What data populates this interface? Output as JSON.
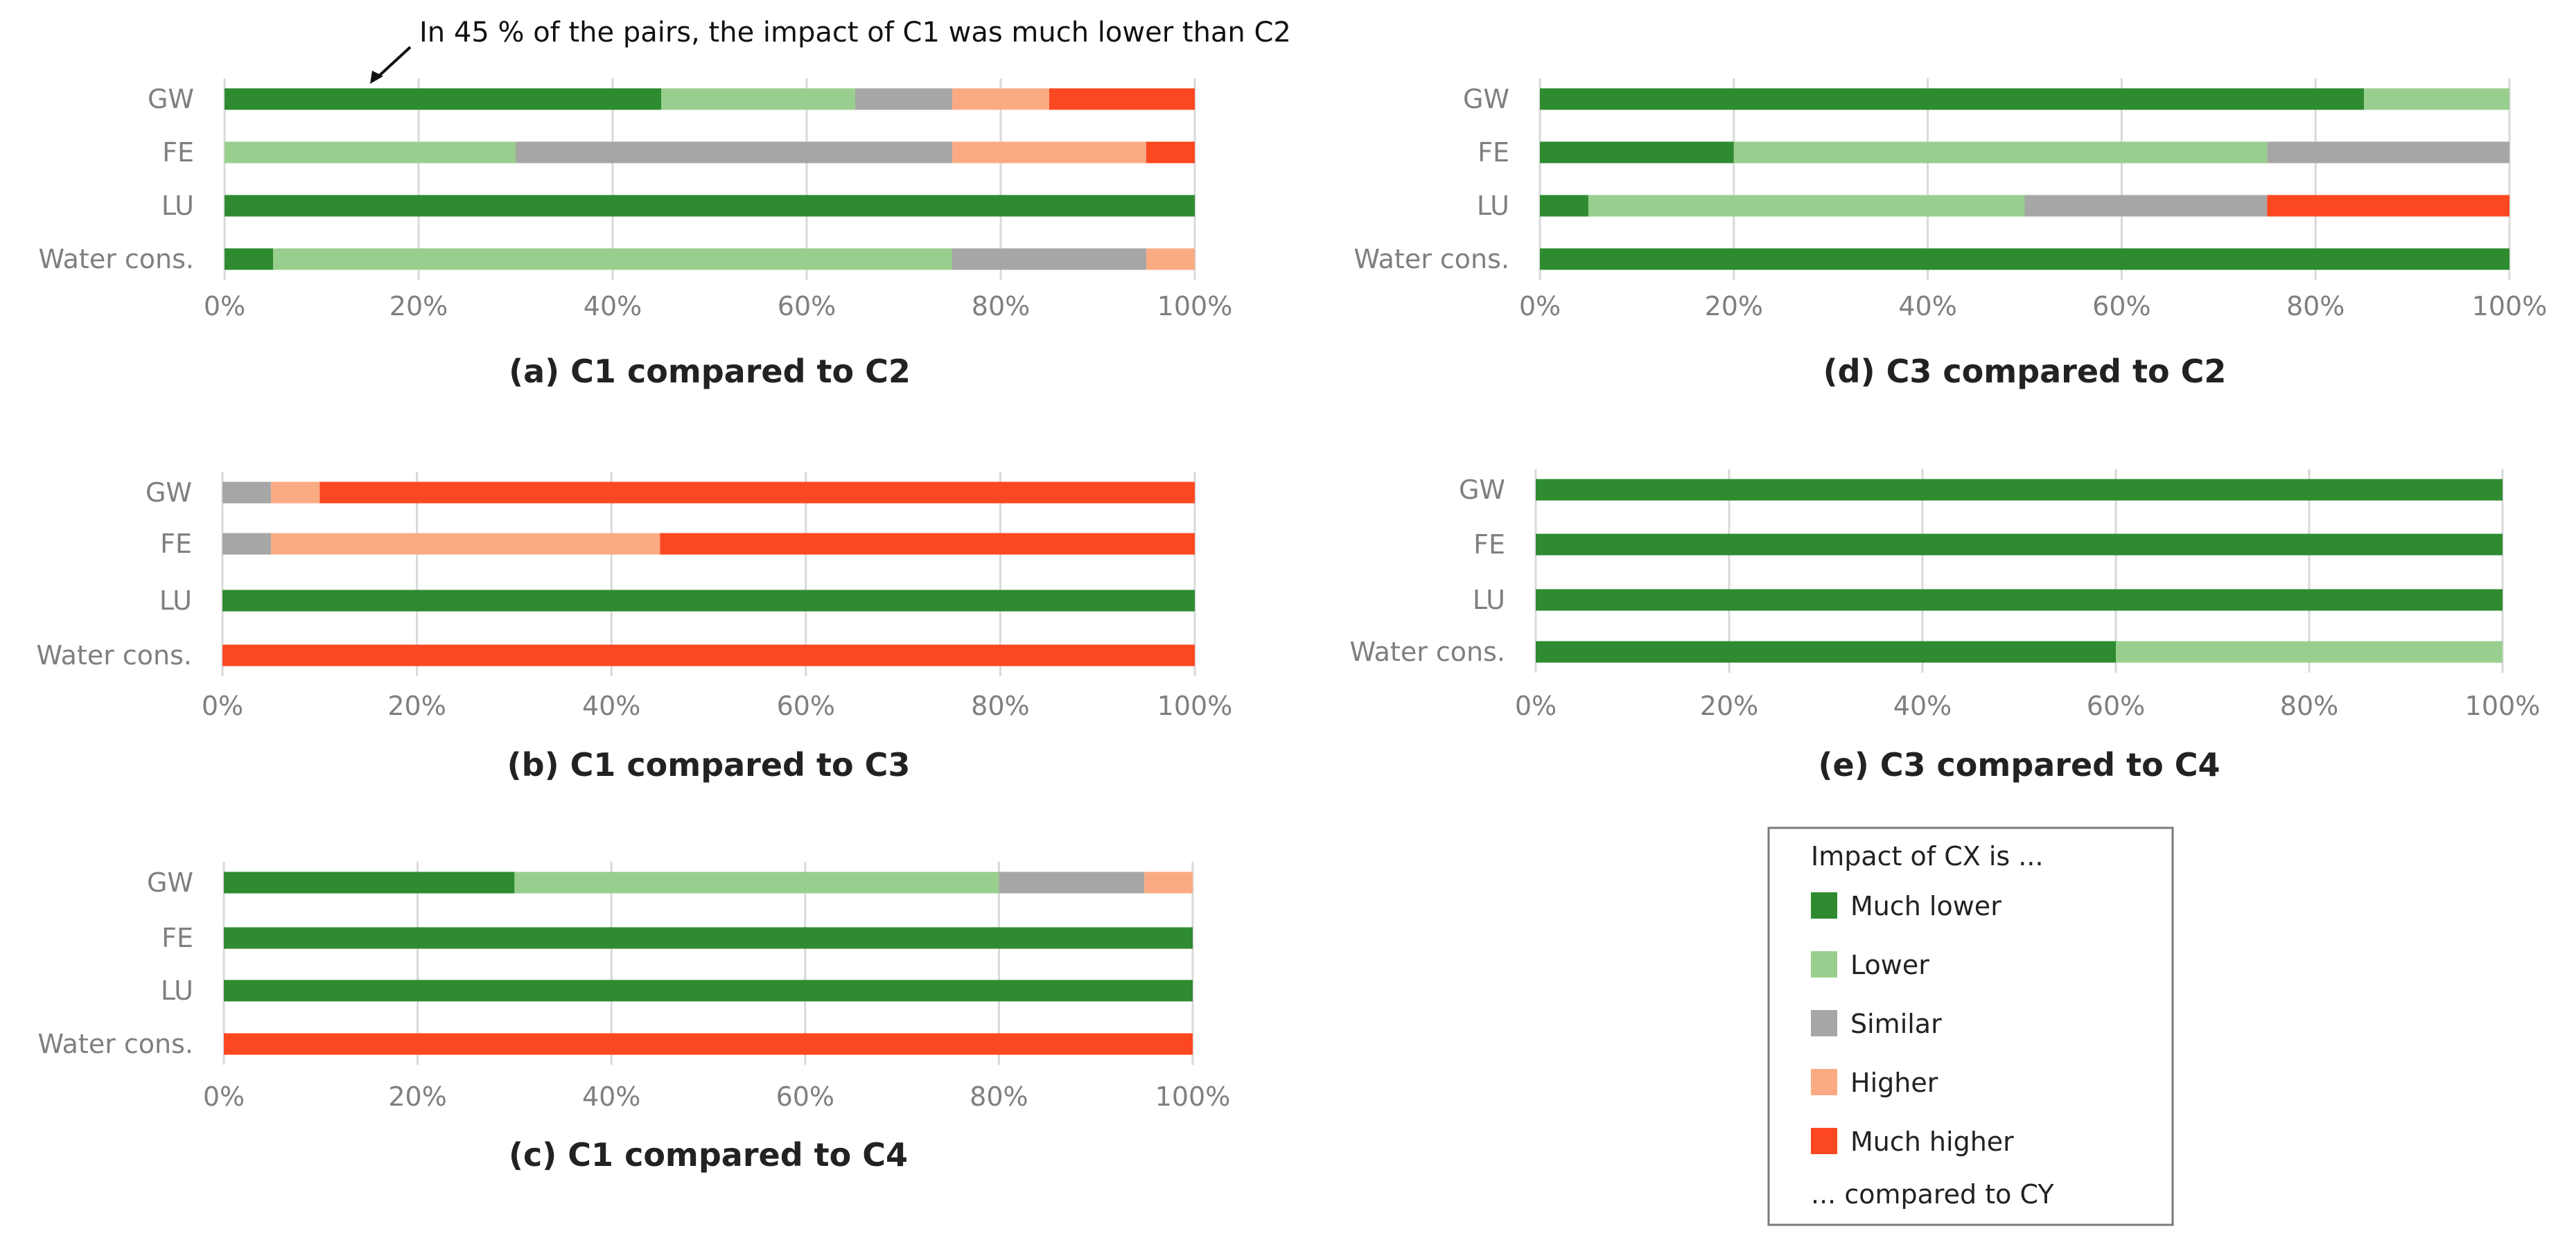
{
  "figure": {
    "annotation": "In 45 % of the pairs, the impact of C1 was much lower than C2"
  },
  "colors": {
    "Much lower": "#2e8b30",
    "Lower": "#98cf8e",
    "Similar": "#a6a6a6",
    "Higher": "#fbab84",
    "Much higher": "#fc4820",
    "grid": "#d9d9d9",
    "tick": "#7f7f7f"
  },
  "legend": {
    "title": "Impact of CX is ...",
    "items": [
      "Much lower",
      "Lower",
      "Similar",
      "Higher",
      "Much higher"
    ],
    "footer": "... compared to CY"
  },
  "chart_data": [
    {
      "id": "a",
      "type": "bar",
      "orientation": "horizontal",
      "stacked": true,
      "title": "(a) C1 compared to C2",
      "categories": [
        "GW",
        "FE",
        "LU",
        "Water cons."
      ],
      "xlim": [
        0,
        100
      ],
      "xticks": [
        "0%",
        "20%",
        "40%",
        "60%",
        "80%",
        "100%"
      ],
      "series": [
        {
          "name": "Much lower",
          "values": [
            45,
            0,
            100,
            5
          ]
        },
        {
          "name": "Lower",
          "values": [
            20,
            30,
            0,
            70
          ]
        },
        {
          "name": "Similar",
          "values": [
            10,
            45,
            0,
            20
          ]
        },
        {
          "name": "Higher",
          "values": [
            10,
            20,
            0,
            5
          ]
        },
        {
          "name": "Much higher",
          "values": [
            15,
            5,
            0,
            0
          ]
        }
      ]
    },
    {
      "id": "b",
      "type": "bar",
      "orientation": "horizontal",
      "stacked": true,
      "title": "(b) C1 compared to C3",
      "categories": [
        "GW",
        "FE",
        "LU",
        "Water cons."
      ],
      "xlim": [
        0,
        100
      ],
      "xticks": [
        "0%",
        "20%",
        "40%",
        "60%",
        "80%",
        "100%"
      ],
      "series": [
        {
          "name": "Much lower",
          "values": [
            0,
            0,
            100,
            0
          ]
        },
        {
          "name": "Lower",
          "values": [
            0,
            0,
            0,
            0
          ]
        },
        {
          "name": "Similar",
          "values": [
            5,
            5,
            0,
            0
          ]
        },
        {
          "name": "Higher",
          "values": [
            5,
            40,
            0,
            0
          ]
        },
        {
          "name": "Much higher",
          "values": [
            90,
            55,
            0,
            100
          ]
        }
      ]
    },
    {
      "id": "c",
      "type": "bar",
      "orientation": "horizontal",
      "stacked": true,
      "title": "(c) C1 compared to C4",
      "categories": [
        "GW",
        "FE",
        "LU",
        "Water cons."
      ],
      "xlim": [
        0,
        100
      ],
      "xticks": [
        "0%",
        "20%",
        "40%",
        "60%",
        "80%",
        "100%"
      ],
      "series": [
        {
          "name": "Much lower",
          "values": [
            30,
            100,
            100,
            0
          ]
        },
        {
          "name": "Lower",
          "values": [
            50,
            0,
            0,
            0
          ]
        },
        {
          "name": "Similar",
          "values": [
            15,
            0,
            0,
            0
          ]
        },
        {
          "name": "Higher",
          "values": [
            5,
            0,
            0,
            0
          ]
        },
        {
          "name": "Much higher",
          "values": [
            0,
            0,
            0,
            100
          ]
        }
      ]
    },
    {
      "id": "d",
      "type": "bar",
      "orientation": "horizontal",
      "stacked": true,
      "title": "(d) C3 compared to C2",
      "categories": [
        "GW",
        "FE",
        "LU",
        "Water cons."
      ],
      "xlim": [
        0,
        100
      ],
      "xticks": [
        "0%",
        "20%",
        "40%",
        "60%",
        "80%",
        "100%"
      ],
      "series": [
        {
          "name": "Much lower",
          "values": [
            85,
            20,
            5,
            100
          ]
        },
        {
          "name": "Lower",
          "values": [
            15,
            55,
            45,
            0
          ]
        },
        {
          "name": "Similar",
          "values": [
            0,
            25,
            25,
            0
          ]
        },
        {
          "name": "Higher",
          "values": [
            0,
            0,
            0,
            0
          ]
        },
        {
          "name": "Much higher",
          "values": [
            0,
            0,
            25,
            0
          ]
        }
      ]
    },
    {
      "id": "e",
      "type": "bar",
      "orientation": "horizontal",
      "stacked": true,
      "title": "(e) C3 compared to C4",
      "categories": [
        "GW",
        "FE",
        "LU",
        "Water cons."
      ],
      "xlim": [
        0,
        100
      ],
      "xticks": [
        "0%",
        "20%",
        "40%",
        "60%",
        "80%",
        "100%"
      ],
      "series": [
        {
          "name": "Much lower",
          "values": [
            100,
            100,
            100,
            60
          ]
        },
        {
          "name": "Lower",
          "values": [
            0,
            0,
            0,
            40
          ]
        },
        {
          "name": "Similar",
          "values": [
            0,
            0,
            0,
            0
          ]
        },
        {
          "name": "Higher",
          "values": [
            0,
            0,
            0,
            0
          ]
        },
        {
          "name": "Much higher",
          "values": [
            0,
            0,
            0,
            0
          ]
        }
      ]
    }
  ]
}
